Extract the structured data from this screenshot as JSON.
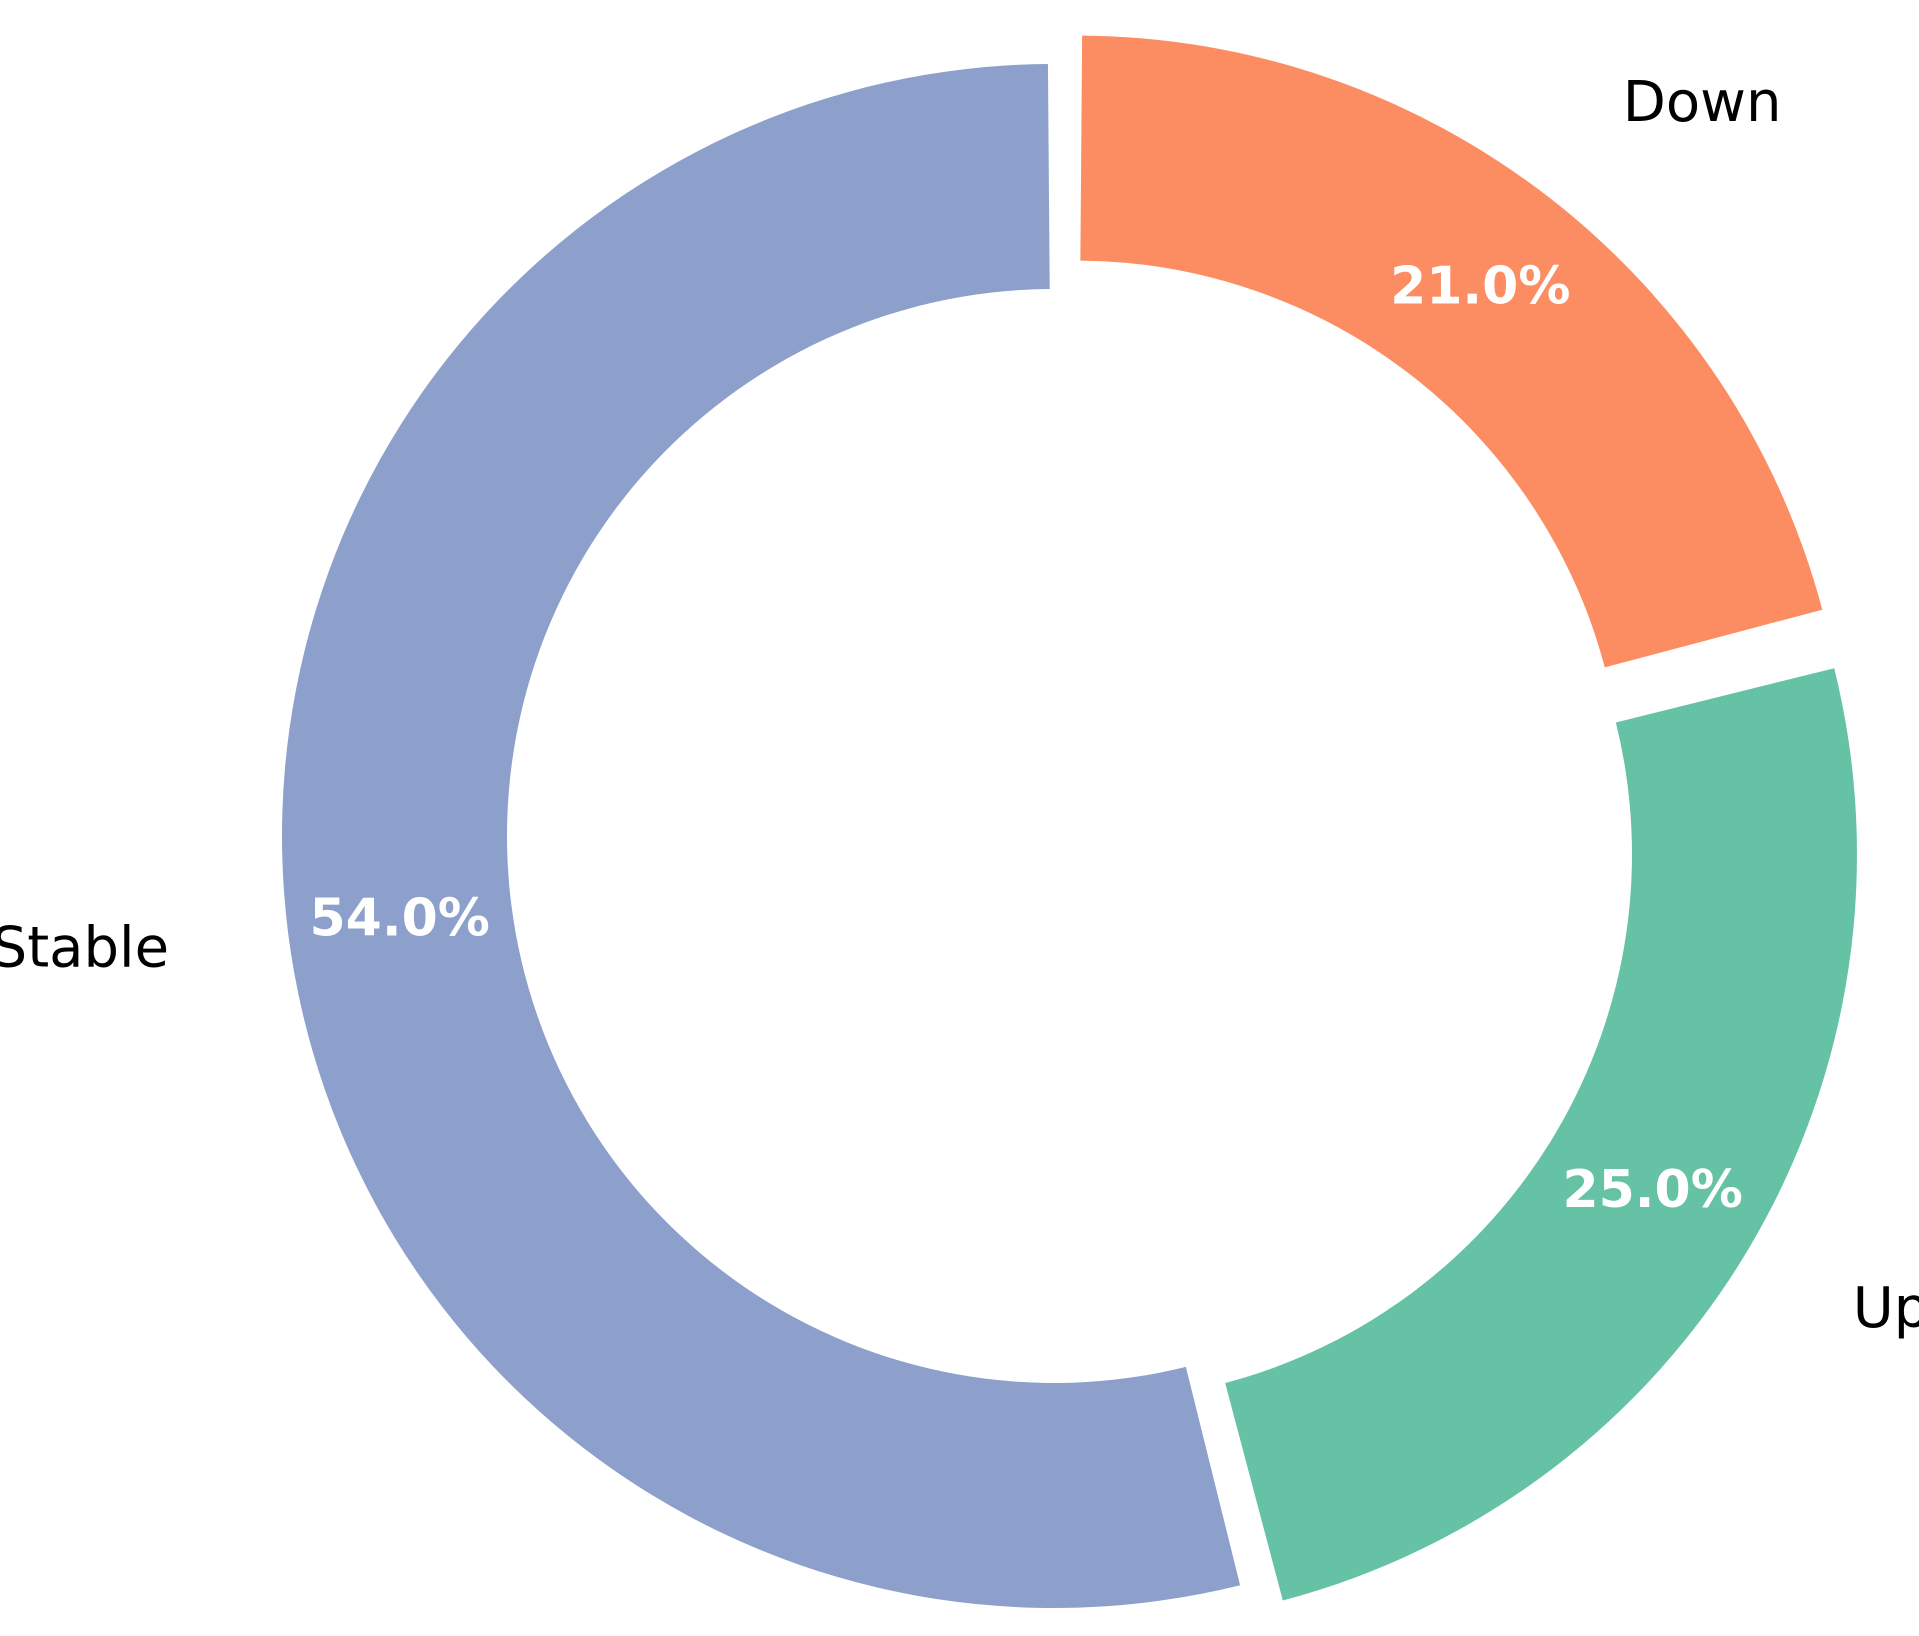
{
  "chart_data": {
    "type": "pie",
    "variant": "donut",
    "categories": [
      "Up",
      "Down",
      "Stable"
    ],
    "values": [
      25.0,
      21.0,
      54.0
    ],
    "value_labels": [
      "25.0%",
      "21.0%",
      "54.0%"
    ],
    "colors": [
      "#66c2a5",
      "#fc8d62",
      "#8da0cb"
    ],
    "exploded": [
      true,
      true,
      false
    ],
    "legend": "none",
    "title": ""
  }
}
